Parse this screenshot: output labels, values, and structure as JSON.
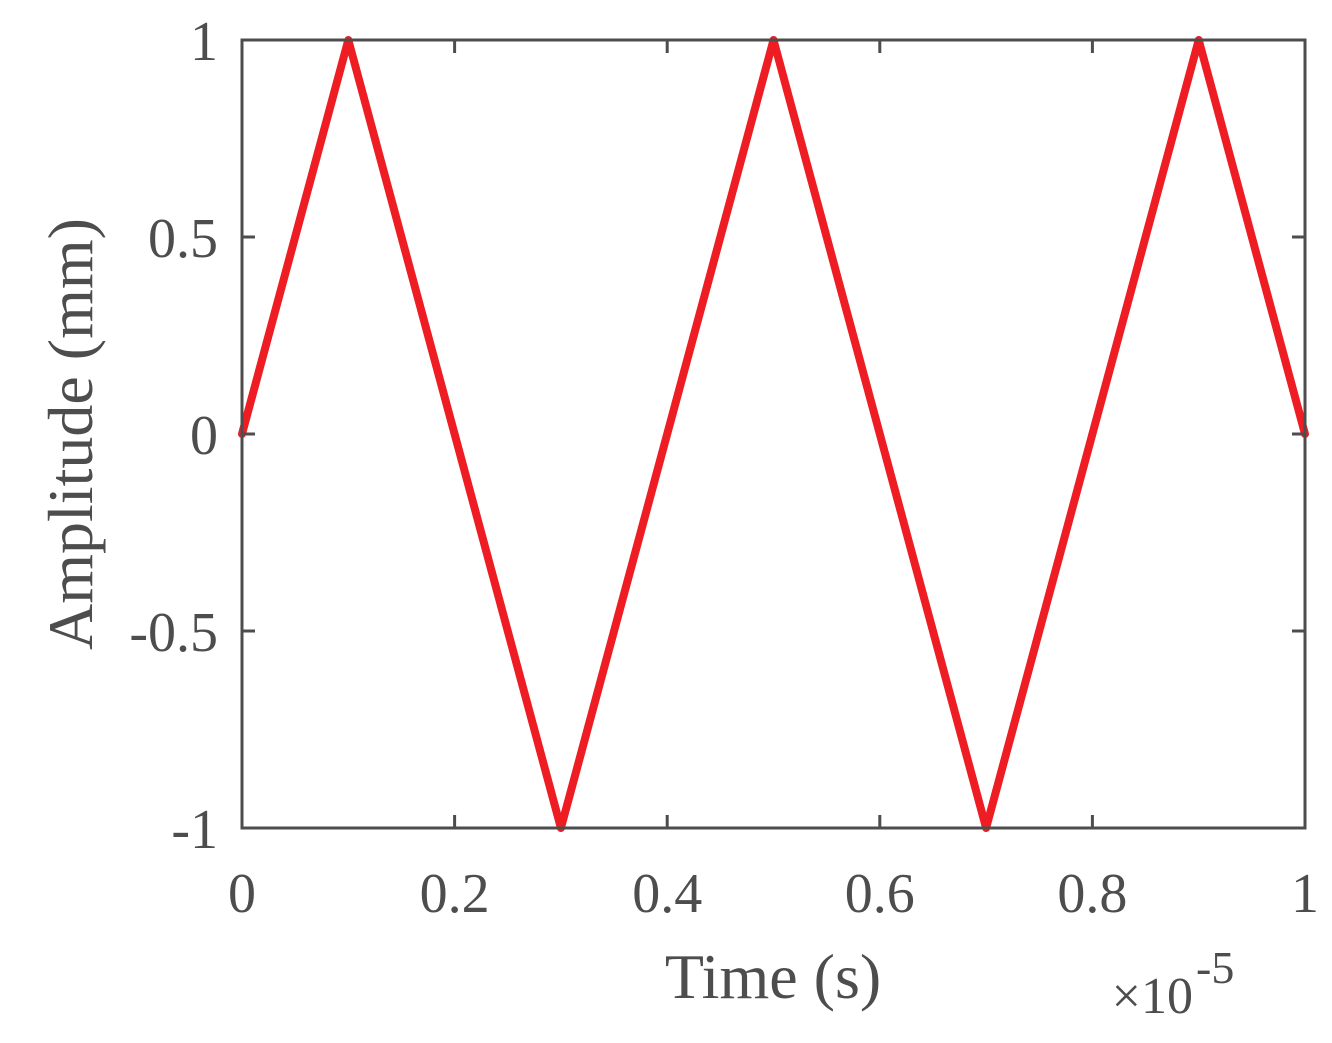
{
  "chart_data": {
    "type": "line",
    "title": "",
    "xlabel": "Time (s)",
    "ylabel": "Amplitude (mm)",
    "x_scale_multiplier": "×10",
    "x_scale_exponent": "-5",
    "xlim": [
      0,
      1
    ],
    "ylim": [
      -1,
      1
    ],
    "xticks": [
      0,
      0.2,
      0.4,
      0.6,
      0.8,
      1
    ],
    "xtick_labels": [
      "0",
      "0.2",
      "0.4",
      "0.6",
      "0.8",
      "1"
    ],
    "yticks": [
      -1,
      -0.5,
      0,
      0.5,
      1
    ],
    "ytick_labels": [
      "-1",
      "-0.5",
      "0",
      "0.5",
      "1"
    ],
    "grid": false,
    "box": true,
    "series": [
      {
        "x": [
          0,
          0.1,
          0.3,
          0.5,
          0.7,
          0.9,
          1.0
        ],
        "y": [
          0,
          1,
          -1,
          1,
          -1,
          1,
          0
        ],
        "color": "#ee1d23"
      }
    ],
    "axis_color": "#4d4d4d"
  }
}
